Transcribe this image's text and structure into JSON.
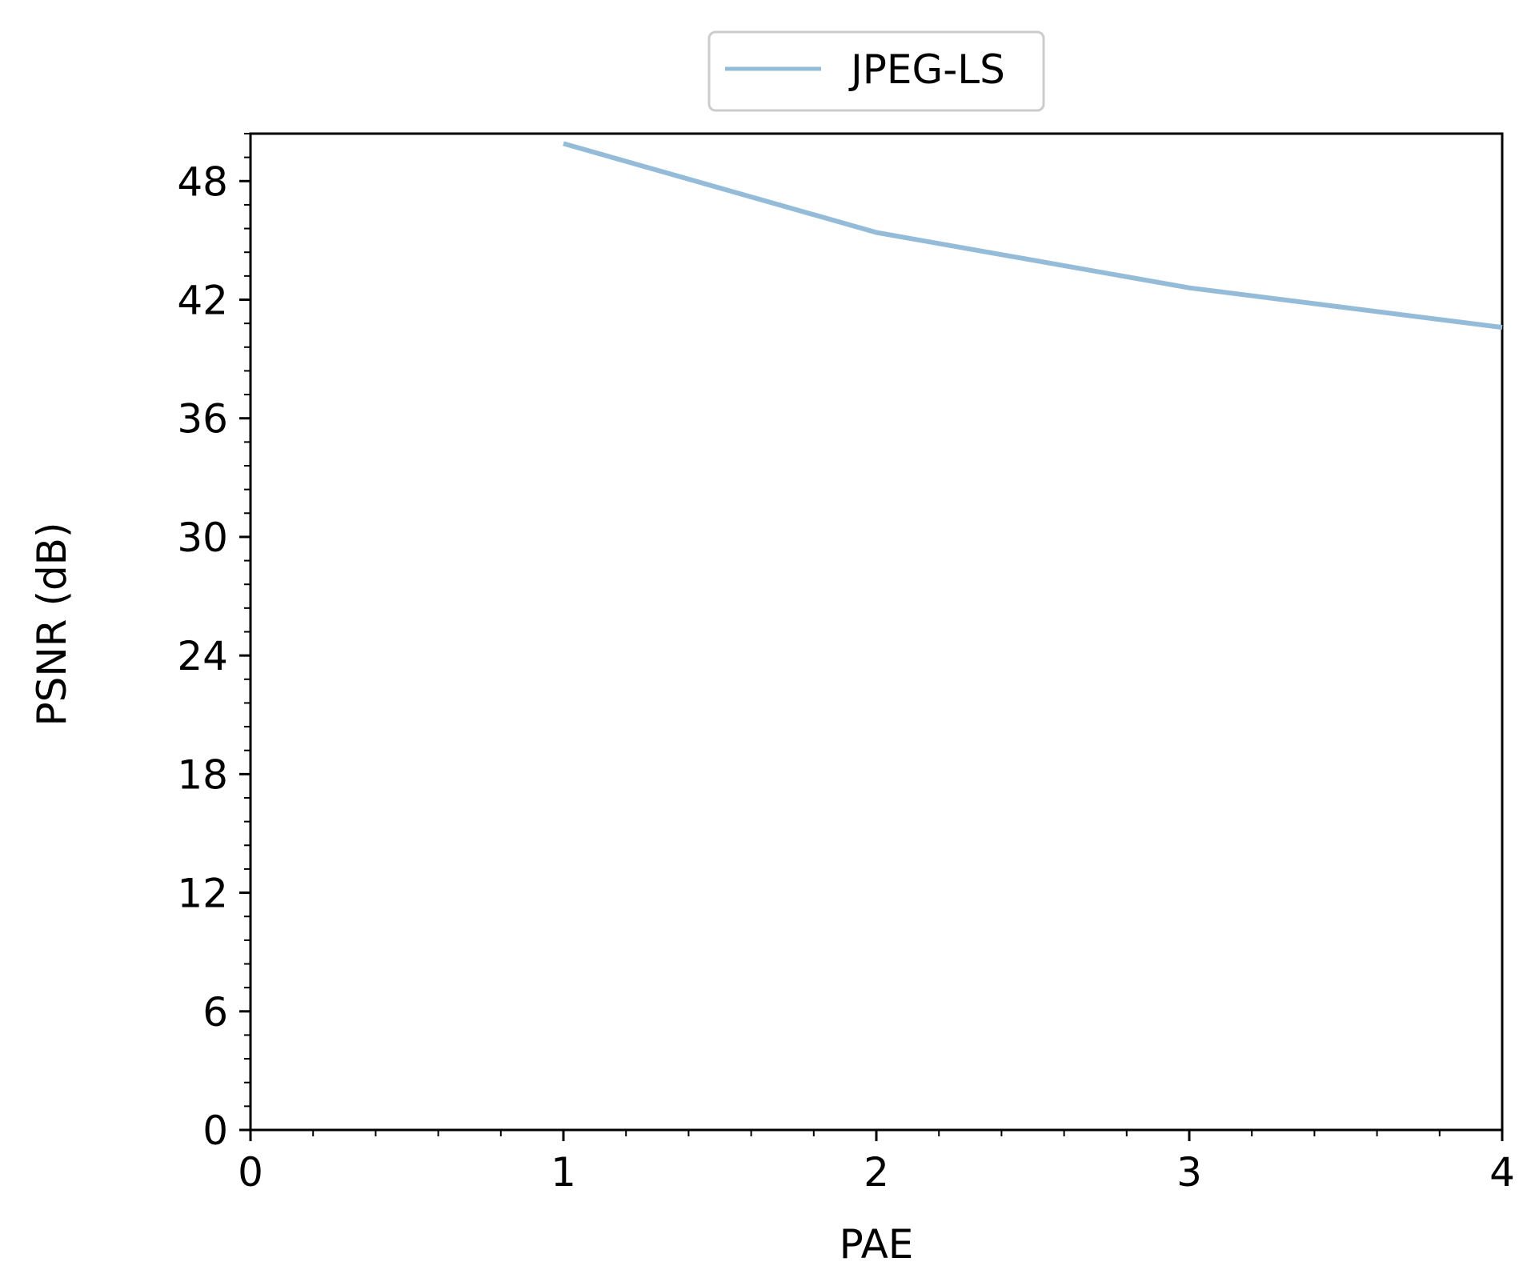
{
  "chart_data": {
    "type": "line",
    "title": "",
    "xlabel": "PAE",
    "ylabel": "PSNR (dB)",
    "xlim": [
      0,
      4
    ],
    "ylim": [
      0,
      50.4
    ],
    "xticks": [
      "0",
      "1",
      "2",
      "3",
      "4"
    ],
    "yticks": [
      "0",
      "6",
      "12",
      "18",
      "24",
      "30",
      "36",
      "42",
      "48"
    ],
    "grid": false,
    "legend_position": "top-center",
    "series": [
      {
        "name": "JPEG-LS",
        "color": "#94bcd9",
        "x": [
          1,
          2,
          3,
          4
        ],
        "y": [
          49.9,
          45.4,
          42.6,
          40.6
        ]
      }
    ]
  }
}
